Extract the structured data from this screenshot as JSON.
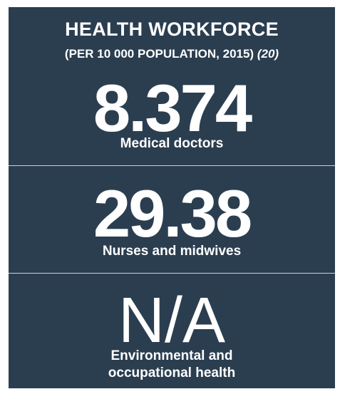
{
  "header": {
    "title": "HEALTH WORKFORCE",
    "subtitle": "(PER 10 000 POPULATION, 2015)",
    "reference": "(20)"
  },
  "stats": [
    {
      "value": 8.374,
      "label": "Medical doctors"
    },
    {
      "value": 29.38,
      "label": "Nurses and midwives"
    },
    {
      "value": "N/A",
      "label": "Environmental and occupational health"
    }
  ]
}
